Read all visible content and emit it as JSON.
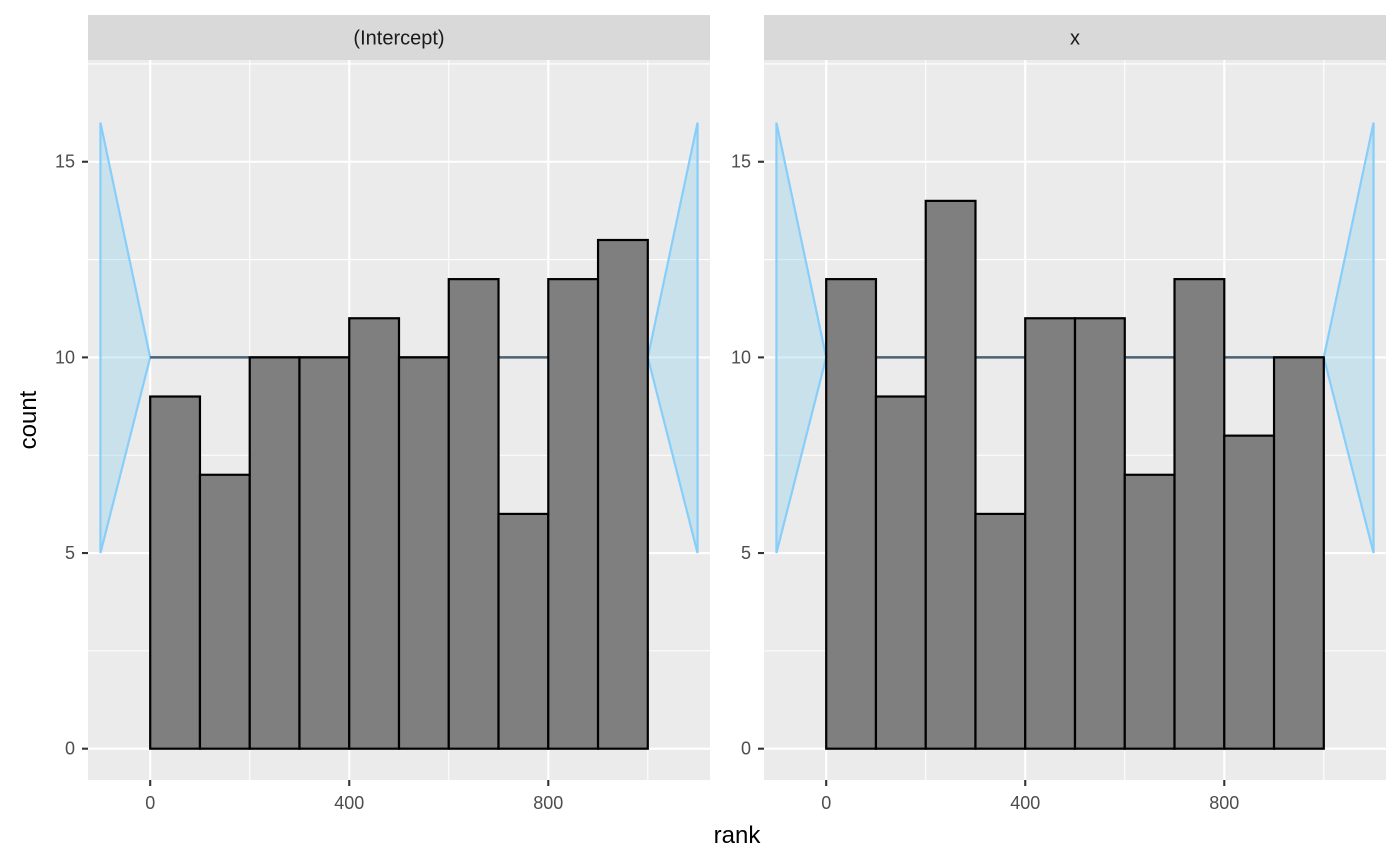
{
  "chart_data": {
    "type": "bar",
    "xlabel": "rank",
    "ylabel": "count",
    "xlim": [
      -125,
      1125
    ],
    "ylim": [
      -0.8,
      17.6
    ],
    "x_ticks": [
      0,
      400,
      800
    ],
    "y_ticks": [
      0,
      5,
      10,
      15
    ],
    "bin_width": 100,
    "bin_starts": [
      0,
      100,
      200,
      300,
      400,
      500,
      600,
      700,
      800,
      900
    ],
    "reference_band": {
      "x": [
        -100,
        0,
        1000,
        1100
      ],
      "upper": [
        16,
        10,
        10,
        16
      ],
      "lower": [
        5,
        10,
        10,
        5
      ],
      "expected_count": 10
    },
    "panels": [
      {
        "strip_label": "(Intercept)",
        "values": [
          9,
          7,
          10,
          10,
          11,
          10,
          12,
          6,
          12,
          13
        ]
      },
      {
        "strip_label": "x",
        "values": [
          12,
          9,
          14,
          6,
          11,
          11,
          7,
          12,
          8,
          10
        ]
      }
    ],
    "colors": {
      "panel_background": "#EBEBEB",
      "strip_background": "#D9D9D9",
      "bar_fill": "#7F7F7F",
      "bar_outline": "#000000",
      "band_fill": "#87CEEB",
      "band_outline": "#87CEFA",
      "expected_line": "#4D6272"
    },
    "grid": true,
    "legend": "none"
  }
}
